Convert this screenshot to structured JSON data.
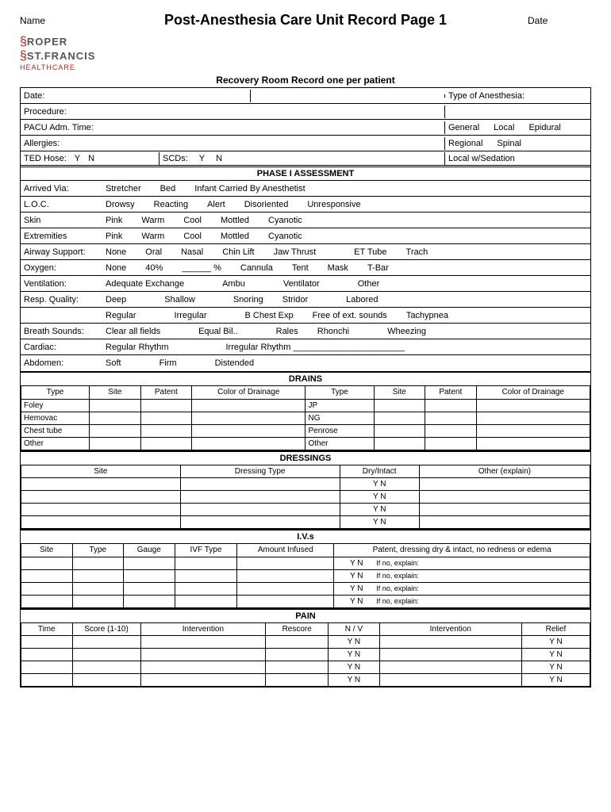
{
  "header": {
    "name_label": "Name",
    "title": "Post-Anesthesia Care Unit Record Page 1",
    "date_label": "Date"
  },
  "logo": {
    "line1": "ROPER",
    "line2": "ST.FRANCIS",
    "line3": "HEALTHCARE"
  },
  "subheader": "Recovery Room Record one per patient",
  "top_section": {
    "date_label": "Date:",
    "anesthesia_label": "Type of Anesthesia:",
    "procedure_label": "Procedure:",
    "pacu_label": "PACU Adm. Time:",
    "anesthesia_row1": [
      "General",
      "Local",
      "Epidural"
    ],
    "allergies_label": "Allergies:",
    "anesthesia_row2": [
      "Regional",
      "Spinal"
    ],
    "ted_label": "TED Hose:",
    "ted_y": "Y",
    "ted_n": "N",
    "scd_label": "SCDs:",
    "scd_y": "Y",
    "scd_n": "N",
    "anesthesia_row3": "Local w/Sedation"
  },
  "phase1": {
    "title": "PHASE I ASSESSMENT",
    "rows": [
      {
        "label": "Arrived Via:",
        "opts": [
          "Stretcher",
          "Bed",
          "Infant Carried By Anesthetist"
        ]
      },
      {
        "label": "L.O.C.",
        "opts": [
          "Drowsy",
          "Reacting",
          "Alert",
          "Disoriented",
          "Unresponsive"
        ]
      },
      {
        "label": "Skin",
        "opts": [
          "Pink",
          "Warm",
          "Cool",
          "Mottled",
          "Cyanotic"
        ]
      },
      {
        "label": "Extremities",
        "opts": [
          "Pink",
          "Warm",
          "Cool",
          "Mottled",
          "Cyanotic"
        ]
      },
      {
        "label": "Airway Support:",
        "opts": [
          "None",
          "Oral",
          "Nasal",
          "Chin Lift",
          "Jaw Thrust",
          "",
          "ET Tube",
          "Trach"
        ]
      },
      {
        "label": "Oxygen:",
        "opts": [
          "None",
          "40%",
          "______ %",
          "Cannula",
          "Tent",
          "Mask",
          "T-Bar"
        ]
      },
      {
        "label": "Ventilation:",
        "opts": [
          "Adequate Exchange",
          "",
          "Ambu",
          "",
          "Ventilator",
          "",
          "Other"
        ]
      },
      {
        "label": "Resp. Quality:",
        "opts": [
          "Deep",
          "",
          "Shallow",
          "",
          "Snoring",
          "Stridor",
          "",
          "Labored"
        ]
      },
      {
        "label": "",
        "opts": [
          "Regular",
          "",
          "Irregular",
          "",
          "B Chest Exp",
          "Free of ext. sounds",
          "Tachypnea"
        ]
      },
      {
        "label": "Breath Sounds:",
        "opts": [
          "Clear all fields",
          "",
          "Equal Bil..",
          "",
          "Rales",
          "Rhonchi",
          "",
          "Wheezing"
        ]
      },
      {
        "label": "Cardiac:",
        "opts": [
          "Regular Rhythm",
          "",
          "",
          "Irregular Rhythm _______________________"
        ]
      },
      {
        "label": "Abdomen:",
        "opts": [
          "Soft",
          "",
          "Firm",
          "",
          "Distended"
        ]
      }
    ]
  },
  "drains": {
    "title": "DRAINS",
    "headers": [
      "Type",
      "Site",
      "Patent",
      "Color of Drainage",
      "Type",
      "Site",
      "Patent",
      "Color of Drainage"
    ],
    "rows": [
      [
        "Foley",
        "",
        "",
        "",
        "JP",
        "",
        "",
        ""
      ],
      [
        "Hemovac",
        "",
        "",
        "",
        "NG",
        "",
        "",
        ""
      ],
      [
        "Chest tube",
        "",
        "",
        "",
        "Penrose",
        "",
        "",
        ""
      ],
      [
        "Other",
        "",
        "",
        "",
        "Other",
        "",
        "",
        ""
      ]
    ]
  },
  "dressings": {
    "title": "DRESSINGS",
    "headers": [
      "Site",
      "Dressing Type",
      "Dry/Intact",
      "Other (explain)"
    ],
    "yn": "Y    N",
    "row_count": 4
  },
  "ivs": {
    "title": "I.V.s",
    "headers": [
      "Site",
      "Type",
      "Gauge",
      "IVF Type",
      "Amount Infused",
      "Patent, dressing dry & intact, no redness or edema"
    ],
    "yn": "Y    N",
    "explain": "If no, explain:",
    "row_count": 4
  },
  "pain": {
    "title": "PAIN",
    "headers": [
      "Time",
      "Score (1-10)",
      "Intervention",
      "Rescore",
      "N / V",
      "Intervention",
      "Relief"
    ],
    "yn": "Y    N",
    "row_count": 4
  }
}
